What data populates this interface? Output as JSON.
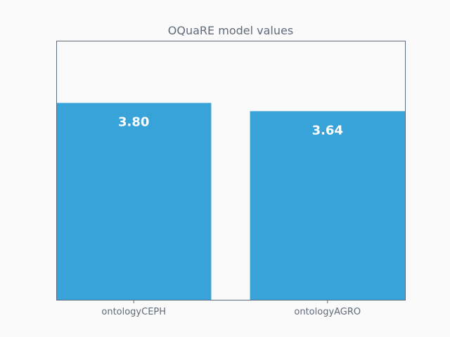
{
  "chart_data": {
    "type": "bar",
    "title": "OQuaRE model values",
    "xlabel": "",
    "ylabel": "",
    "categories": [
      "ontologyCEPH",
      "ontologyAGRO"
    ],
    "values": [
      3.8,
      3.64
    ],
    "value_labels": [
      "3.80",
      "3.64"
    ],
    "ylim": [
      0,
      5
    ],
    "bar_color": "#38a3d9",
    "axis_color": "#5f6b7a",
    "grid": false,
    "legend": "none"
  }
}
